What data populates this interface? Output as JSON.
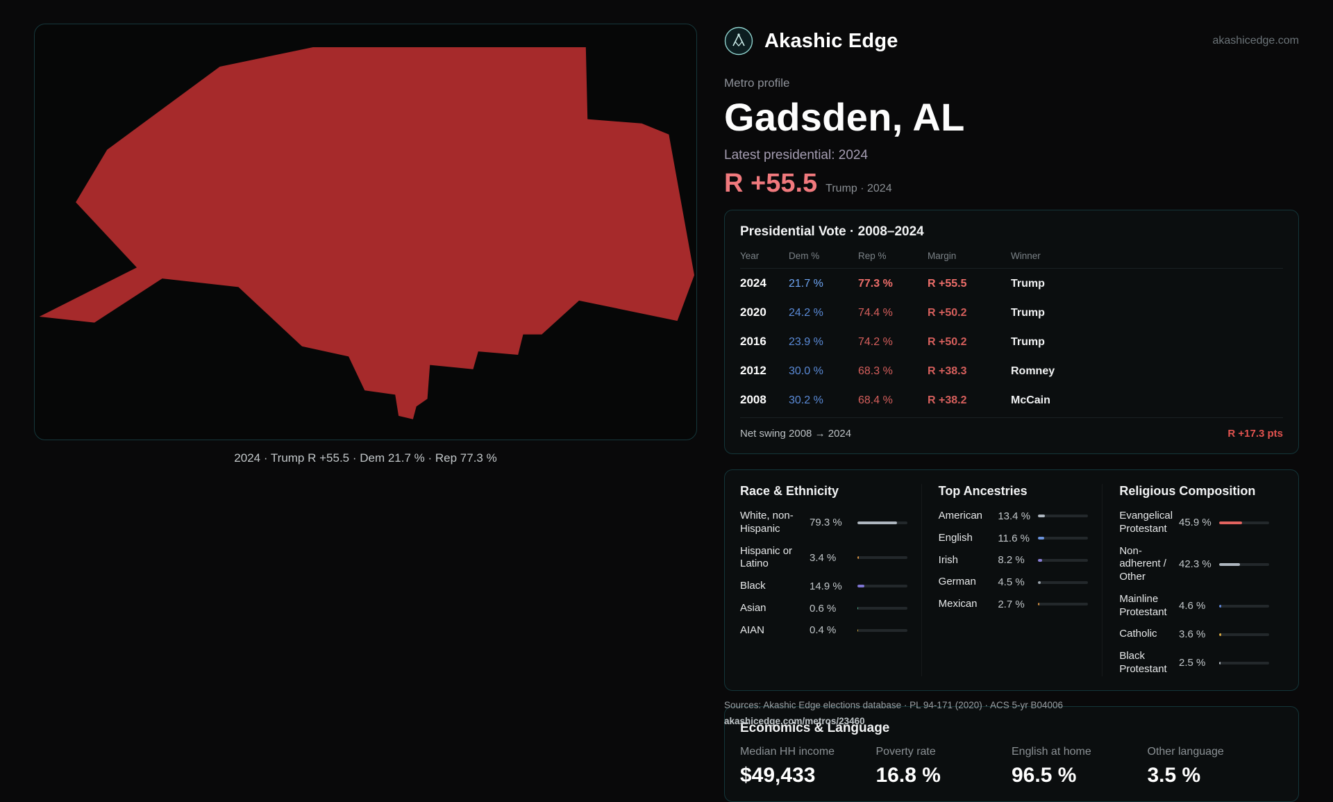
{
  "brand": {
    "name": "Akashic Edge",
    "domain": "akashicedge.com"
  },
  "profile": {
    "kicker": "Metro profile",
    "title": "Gadsden, AL",
    "subtitle": "Latest presidential: 2024",
    "headline_margin": "R +55.5",
    "headline_note": "Trump · 2024"
  },
  "map": {
    "caption": "2024 · Trump R +55.5 · Dem 21.7 % · Rep 77.3 %",
    "fill": "#a62a2b"
  },
  "colors": {
    "accent_red": "#f0797d",
    "dem_blue": "#5b8bd8",
    "rep_red": "#d65f5c",
    "card_border": "#14363a"
  },
  "vote_table": {
    "title": "Presidential Vote · 2008–2024",
    "columns": [
      "Year",
      "Dem %",
      "Rep %",
      "Margin",
      "Winner"
    ],
    "rows": [
      {
        "year": "2024",
        "dem": "21.7 %",
        "rep": "77.3 %",
        "margin": "R +55.5",
        "winner": "Trump"
      },
      {
        "year": "2020",
        "dem": "24.2 %",
        "rep": "74.4 %",
        "margin": "R +50.2",
        "winner": "Trump"
      },
      {
        "year": "2016",
        "dem": "23.9 %",
        "rep": "74.2 %",
        "margin": "R +50.2",
        "winner": "Trump"
      },
      {
        "year": "2012",
        "dem": "30.0 %",
        "rep": "68.3 %",
        "margin": "R +38.3",
        "winner": "Romney"
      },
      {
        "year": "2008",
        "dem": "30.2 %",
        "rep": "68.4 %",
        "margin": "R +38.2",
        "winner": "McCain"
      }
    ],
    "footer_label": "Net swing 2008 → 2024",
    "footer_value": "R +17.3 pts"
  },
  "demographics": {
    "race": {
      "title": "Race & Ethnicity",
      "items": [
        {
          "label": "White, non-Hispanic",
          "value": "79.3 %",
          "pct": 79.3,
          "color": "#aeb6bf"
        },
        {
          "label": "Hispanic or Latino",
          "value": "3.4 %",
          "pct": 3.4,
          "color": "#d9923f"
        },
        {
          "label": "Black",
          "value": "14.9 %",
          "pct": 14.9,
          "color": "#7e74d2"
        },
        {
          "label": "Asian",
          "value": "0.6 %",
          "pct": 0.6,
          "color": "#4fae8a"
        },
        {
          "label": "AIAN",
          "value": "0.4 %",
          "pct": 0.4,
          "color": "#c8a23c"
        }
      ]
    },
    "ancestries": {
      "title": "Top Ancestries",
      "items": [
        {
          "label": "American",
          "value": "13.4 %",
          "pct": 13.4,
          "color": "#aeb6bf"
        },
        {
          "label": "English",
          "value": "11.6 %",
          "pct": 11.6,
          "color": "#6b93dc"
        },
        {
          "label": "Irish",
          "value": "8.2 %",
          "pct": 8.2,
          "color": "#8a7fd8"
        },
        {
          "label": "German",
          "value": "4.5 %",
          "pct": 4.5,
          "color": "#9aa3ac"
        },
        {
          "label": "Mexican",
          "value": "2.7 %",
          "pct": 2.7,
          "color": "#d9923f"
        }
      ]
    },
    "religion": {
      "title": "Religious Composition",
      "items": [
        {
          "label": "Evangelical Protestant",
          "value": "45.9 %",
          "pct": 45.9,
          "color": "#e2635f"
        },
        {
          "label": "Non-adherent / Other",
          "value": "42.3 %",
          "pct": 42.3,
          "color": "#aeb6bf"
        },
        {
          "label": "Mainline Protestant",
          "value": "4.6 %",
          "pct": 4.6,
          "color": "#5d86d8"
        },
        {
          "label": "Catholic",
          "value": "3.6 %",
          "pct": 3.6,
          "color": "#d9a83f"
        },
        {
          "label": "Black Protestant",
          "value": "2.5 %",
          "pct": 2.5,
          "color": "#b7bec6"
        }
      ]
    }
  },
  "economics": {
    "title": "Economics & Language",
    "stats": [
      {
        "label": "Median HH income",
        "value": "$49,433"
      },
      {
        "label": "Poverty rate",
        "value": "16.8 %"
      },
      {
        "label": "English at home",
        "value": "96.5 %"
      },
      {
        "label": "Other language",
        "value": "3.5 %"
      }
    ]
  },
  "footer": {
    "sources": "Sources: Akashic Edge elections database · PL 94-171 (2020) · ACS 5-yr B04006",
    "permalink": "akashicedge.com/metros/23460"
  }
}
